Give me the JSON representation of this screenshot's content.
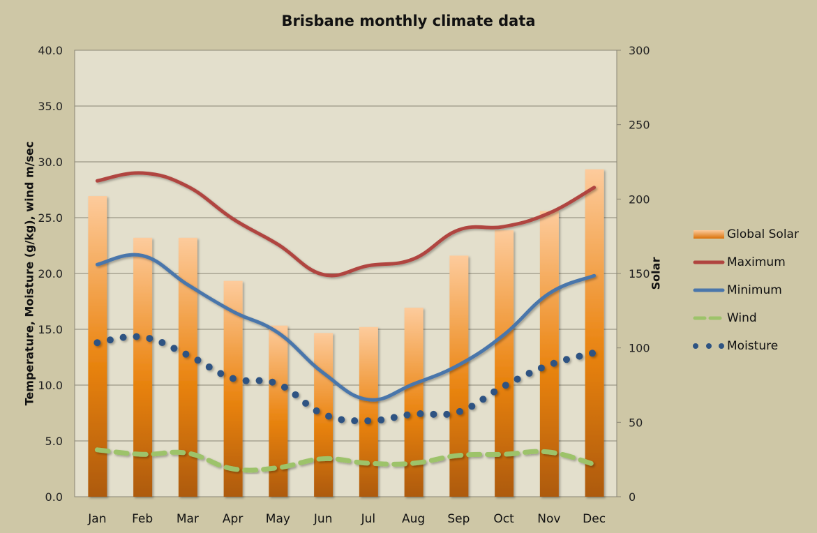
{
  "chart_data": {
    "type": "bar+line",
    "title": "Brisbane monthly climate data",
    "ylabel": "Temperature, Moisture (g/kg), wind m/sec",
    "y2label": "Solar",
    "categories": [
      "Jan",
      "Feb",
      "Mar",
      "Apr",
      "May",
      "Jun",
      "Jul",
      "Aug",
      "Sep",
      "Oct",
      "Nov",
      "Dec"
    ],
    "ylim": [
      0,
      40
    ],
    "y2lim": [
      0,
      300
    ],
    "yticks": [
      "0.0",
      "5.0",
      "10.0",
      "15.0",
      "20.0",
      "25.0",
      "30.0",
      "35.0",
      "40.0"
    ],
    "y2ticks": [
      "0",
      "50",
      "100",
      "150",
      "200",
      "250",
      "300"
    ],
    "grid": true,
    "legend_position": "right",
    "series": [
      {
        "name": "Global Solar",
        "type": "bar",
        "axis": "right",
        "color": "#e8820c",
        "values": [
          202,
          174,
          174,
          145,
          115,
          110,
          114,
          127,
          162,
          179,
          192,
          220
        ]
      },
      {
        "name": "Maximum",
        "type": "line",
        "axis": "left",
        "color": "#b0443f",
        "style": "solid",
        "values": [
          28.3,
          29.0,
          27.8,
          24.9,
          22.6,
          19.9,
          20.7,
          21.3,
          23.9,
          24.2,
          25.4,
          27.7
        ]
      },
      {
        "name": "Minimum",
        "type": "line",
        "axis": "left",
        "color": "#4a76ab",
        "style": "solid",
        "values": [
          20.8,
          21.6,
          19.0,
          16.6,
          14.7,
          11.1,
          8.7,
          10.1,
          11.8,
          14.5,
          18.2,
          19.8
        ]
      },
      {
        "name": "Wind",
        "type": "line",
        "axis": "left",
        "color": "#9dc36a",
        "style": "dashed",
        "values": [
          4.2,
          3.8,
          3.9,
          2.5,
          2.6,
          3.4,
          3.0,
          3.0,
          3.7,
          3.8,
          4.0,
          2.9
        ]
      },
      {
        "name": "Moisture",
        "type": "line",
        "axis": "left",
        "color": "#2d5382",
        "style": "dotted",
        "values": [
          13.8,
          14.3,
          12.7,
          10.6,
          10.1,
          7.4,
          6.8,
          7.4,
          7.6,
          9.9,
          11.8,
          12.9
        ]
      }
    ]
  }
}
